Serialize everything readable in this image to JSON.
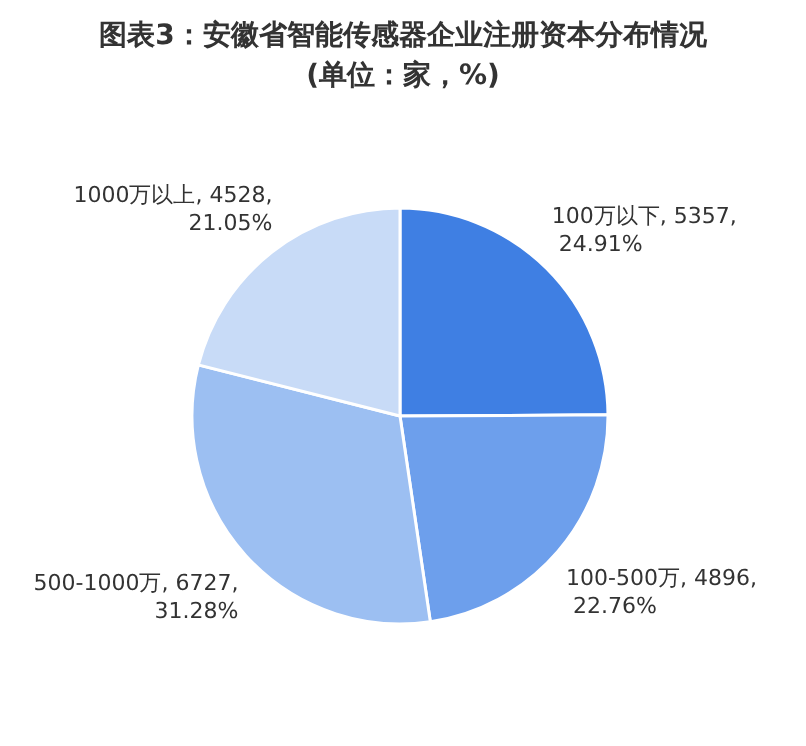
{
  "chart_data": {
    "type": "pie",
    "title": "图表3：安徽省智能传感器企业注册资本分布情况",
    "subtitle": "(单位：家，%)",
    "categories": [
      "100万以下",
      "100-500万",
      "500-1000万",
      "1000万以上"
    ],
    "values": [
      24.91,
      22.76,
      31.28,
      21.05
    ],
    "value_labels": [
      "5357, 24.91%",
      "4896, 22.76%",
      "6727, 31.28%",
      "4528, 21.05%"
    ],
    "colors": [
      "#3f7fe3",
      "#6d9fec",
      "#9cbff2",
      "#c8dbf7"
    ]
  }
}
